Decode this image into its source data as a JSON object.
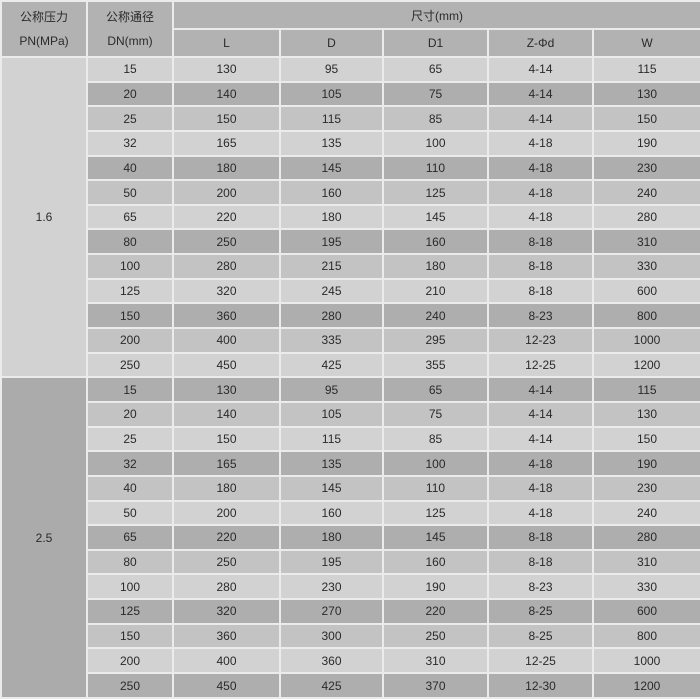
{
  "colors": {
    "row_light": "#d2d2d2",
    "row_dark": "#aeaeae",
    "row_medium": "#c3c3c3",
    "header_bg": "#b2b2b2",
    "pn_1_6_cell_bg": "#d2d2d2",
    "pn_2_5_cell_bg": "#ababab",
    "grid_line": "#ebebeb",
    "text": "#2a2a2a"
  },
  "table": {
    "header": {
      "pressure_label_cn": "公称压力",
      "pressure_label_en": "PN(MPa)",
      "diameter_label_cn": "公称通径",
      "diameter_label_en": "DN(mm)",
      "size_label": "尺寸(mm)",
      "size_columns": [
        "L",
        "D",
        "D1",
        "Z-Φd",
        "W"
      ]
    },
    "groups": [
      {
        "pn": "1.6",
        "rows": [
          [
            "15",
            "130",
            "95",
            "65",
            "4-14",
            "115"
          ],
          [
            "20",
            "140",
            "105",
            "75",
            "4-14",
            "130"
          ],
          [
            "25",
            "150",
            "115",
            "85",
            "4-14",
            "150"
          ],
          [
            "32",
            "165",
            "135",
            "100",
            "4-18",
            "190"
          ],
          [
            "40",
            "180",
            "145",
            "110",
            "4-18",
            "230"
          ],
          [
            "50",
            "200",
            "160",
            "125",
            "4-18",
            "240"
          ],
          [
            "65",
            "220",
            "180",
            "145",
            "4-18",
            "280"
          ],
          [
            "80",
            "250",
            "195",
            "160",
            "8-18",
            "310"
          ],
          [
            "100",
            "280",
            "215",
            "180",
            "8-18",
            "330"
          ],
          [
            "125",
            "320",
            "245",
            "210",
            "8-18",
            "600"
          ],
          [
            "150",
            "360",
            "280",
            "240",
            "8-23",
            "800"
          ],
          [
            "200",
            "400",
            "335",
            "295",
            "12-23",
            "1000"
          ],
          [
            "250",
            "450",
            "425",
            "355",
            "12-25",
            "1200"
          ]
        ]
      },
      {
        "pn": "2.5",
        "rows": [
          [
            "15",
            "130",
            "95",
            "65",
            "4-14",
            "115"
          ],
          [
            "20",
            "140",
            "105",
            "75",
            "4-14",
            "130"
          ],
          [
            "25",
            "150",
            "115",
            "85",
            "4-14",
            "150"
          ],
          [
            "32",
            "165",
            "135",
            "100",
            "4-18",
            "190"
          ],
          [
            "40",
            "180",
            "145",
            "110",
            "4-18",
            "230"
          ],
          [
            "50",
            "200",
            "160",
            "125",
            "4-18",
            "240"
          ],
          [
            "65",
            "220",
            "180",
            "145",
            "8-18",
            "280"
          ],
          [
            "80",
            "250",
            "195",
            "160",
            "8-18",
            "310"
          ],
          [
            "100",
            "280",
            "230",
            "190",
            "8-23",
            "330"
          ],
          [
            "125",
            "320",
            "270",
            "220",
            "8-25",
            "600"
          ],
          [
            "150",
            "360",
            "300",
            "250",
            "8-25",
            "800"
          ],
          [
            "200",
            "400",
            "360",
            "310",
            "12-25",
            "1000"
          ],
          [
            "250",
            "450",
            "425",
            "370",
            "12-30",
            "1200"
          ]
        ]
      }
    ]
  }
}
